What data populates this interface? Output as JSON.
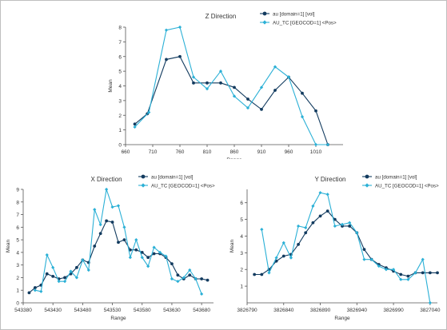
{
  "colors": {
    "series1": "#123b5f",
    "series2": "#2bb0d6",
    "axis": "#555555"
  },
  "chart_data": [
    {
      "type": "line",
      "title": "Z Direction",
      "xlabel": "Range",
      "ylabel": "Mean",
      "xlim": [
        660,
        1060
      ],
      "ylim": [
        0,
        8
      ],
      "xticks": [
        660,
        710,
        760,
        810,
        860,
        910,
        960,
        1010
      ],
      "yticks": [
        0,
        1,
        2,
        3,
        4,
        5,
        6,
        7,
        8
      ],
      "grid": false,
      "legend": "top-right",
      "series": [
        {
          "name": "au [domain=1] [vol]",
          "marker": "circle",
          "x": [
            677,
            700,
            735,
            760,
            785,
            810,
            835,
            860,
            885,
            910,
            935,
            960,
            985,
            1010,
            1032
          ],
          "y": [
            1.4,
            2.1,
            5.8,
            6.0,
            4.2,
            4.2,
            4.2,
            3.9,
            3.1,
            2.4,
            3.7,
            4.6,
            3.5,
            2.3,
            0
          ]
        },
        {
          "name": "AU_TC [GEOCOD=1] <Pos>",
          "marker": "diamond",
          "x": [
            677,
            703,
            735,
            760,
            785,
            810,
            835,
            860,
            885,
            910,
            935,
            960,
            985,
            1010,
            1032
          ],
          "y": [
            1.2,
            2.2,
            7.8,
            8.0,
            4.6,
            3.8,
            5.0,
            3.3,
            2.5,
            3.9,
            5.3,
            4.6,
            1.9,
            0,
            0
          ]
        }
      ]
    },
    {
      "type": "line",
      "title": "X Direction",
      "xlabel": "Range",
      "ylabel": "Mean",
      "xlim": [
        543380,
        543700
      ],
      "ylim": [
        0,
        9
      ],
      "xticks": [
        543380,
        543430,
        543480,
        543530,
        543580,
        543630,
        543680
      ],
      "yticks": [
        0,
        1,
        2,
        3,
        4,
        5,
        6,
        7,
        8,
        9
      ],
      "grid": false,
      "legend": "top-right",
      "series": [
        {
          "name": "au [domain=1] [vol]",
          "marker": "circle",
          "x": [
            543390,
            543400,
            543410,
            543420,
            543430,
            543440,
            543450,
            543460,
            543470,
            543480,
            543490,
            543500,
            543510,
            543520,
            543530,
            543540,
            543550,
            543560,
            543570,
            543580,
            543590,
            543600,
            543610,
            543620,
            543630,
            543640,
            543650,
            543660,
            543670,
            543680,
            543690
          ],
          "y": [
            0.8,
            1.2,
            1.4,
            2.3,
            2.1,
            1.9,
            2.0,
            2.3,
            2.8,
            3.4,
            3.2,
            4.5,
            5.5,
            6.5,
            6.4,
            4.8,
            5.0,
            4.2,
            4.2,
            4.0,
            3.6,
            3.9,
            3.9,
            3.6,
            3.1,
            2.2,
            1.9,
            2.2,
            1.9,
            1.9,
            1.8
          ]
        },
        {
          "name": "AU_TC [GEOCOD=1] <Pos>",
          "marker": "diamond",
          "x": [
            543400,
            543410,
            543420,
            543430,
            543440,
            543450,
            543460,
            543470,
            543480,
            543490,
            543500,
            543510,
            543520,
            543530,
            543540,
            543550,
            543560,
            543570,
            543580,
            543590,
            543600,
            543610,
            543620,
            543630,
            543640,
            543650,
            543660,
            543670,
            543680
          ],
          "y": [
            1.0,
            0.9,
            3.8,
            2.8,
            1.7,
            1.7,
            2.5,
            2.0,
            3.4,
            2.6,
            7.4,
            6.2,
            9.0,
            7.6,
            7.7,
            6.0,
            3.6,
            5.0,
            3.6,
            2.9,
            4.4,
            4.0,
            3.7,
            1.9,
            1.7,
            2.0,
            2.6,
            1.9,
            0.7
          ]
        }
      ]
    },
    {
      "type": "line",
      "title": "Y Direction",
      "xlabel": "Range",
      "ylabel": "Mean",
      "xlim": [
        3826790,
        3827050
      ],
      "ylim": [
        0,
        6.8
      ],
      "xticks": [
        3826790,
        3826840,
        3826890,
        3826940,
        3826990,
        3827040
      ],
      "yticks": [
        1,
        2,
        3,
        4,
        5,
        6
      ],
      "grid": false,
      "legend": "top-right",
      "series": [
        {
          "name": "au [domain=1] [vol]",
          "marker": "circle",
          "x": [
            3826800,
            3826810,
            3826820,
            3826830,
            3826840,
            3826850,
            3826860,
            3826870,
            3826880,
            3826890,
            3826900,
            3826910,
            3826920,
            3826930,
            3826940,
            3826950,
            3826960,
            3826970,
            3826980,
            3826990,
            3827000,
            3827010,
            3827020,
            3827030,
            3827040,
            3827050
          ],
          "y": [
            1.7,
            1.7,
            2.0,
            2.5,
            2.8,
            2.9,
            3.5,
            4.2,
            4.8,
            5.2,
            5.5,
            5.0,
            4.6,
            4.6,
            4.2,
            3.2,
            2.6,
            2.3,
            2.1,
            1.9,
            1.7,
            1.6,
            1.8,
            1.8,
            1.8,
            1.8
          ]
        },
        {
          "name": "AU_TC [GEOCOD=1] <Pos>",
          "marker": "diamond",
          "x": [
            3826810,
            3826820,
            3826830,
            3826840,
            3826850,
            3826860,
            3826870,
            3826880,
            3826890,
            3826900,
            3826910,
            3826920,
            3826930,
            3826940,
            3826950,
            3826960,
            3826970,
            3826980,
            3826990,
            3827000,
            3827010,
            3827020,
            3827030,
            3827040
          ],
          "y": [
            4.4,
            1.8,
            2.7,
            3.6,
            2.7,
            4.6,
            4.5,
            5.8,
            6.6,
            6.5,
            4.6,
            4.7,
            4.8,
            4.2,
            2.6,
            2.6,
            2.2,
            2.0,
            2.0,
            1.4,
            1.4,
            1.8,
            2.6,
            0
          ]
        }
      ]
    }
  ]
}
